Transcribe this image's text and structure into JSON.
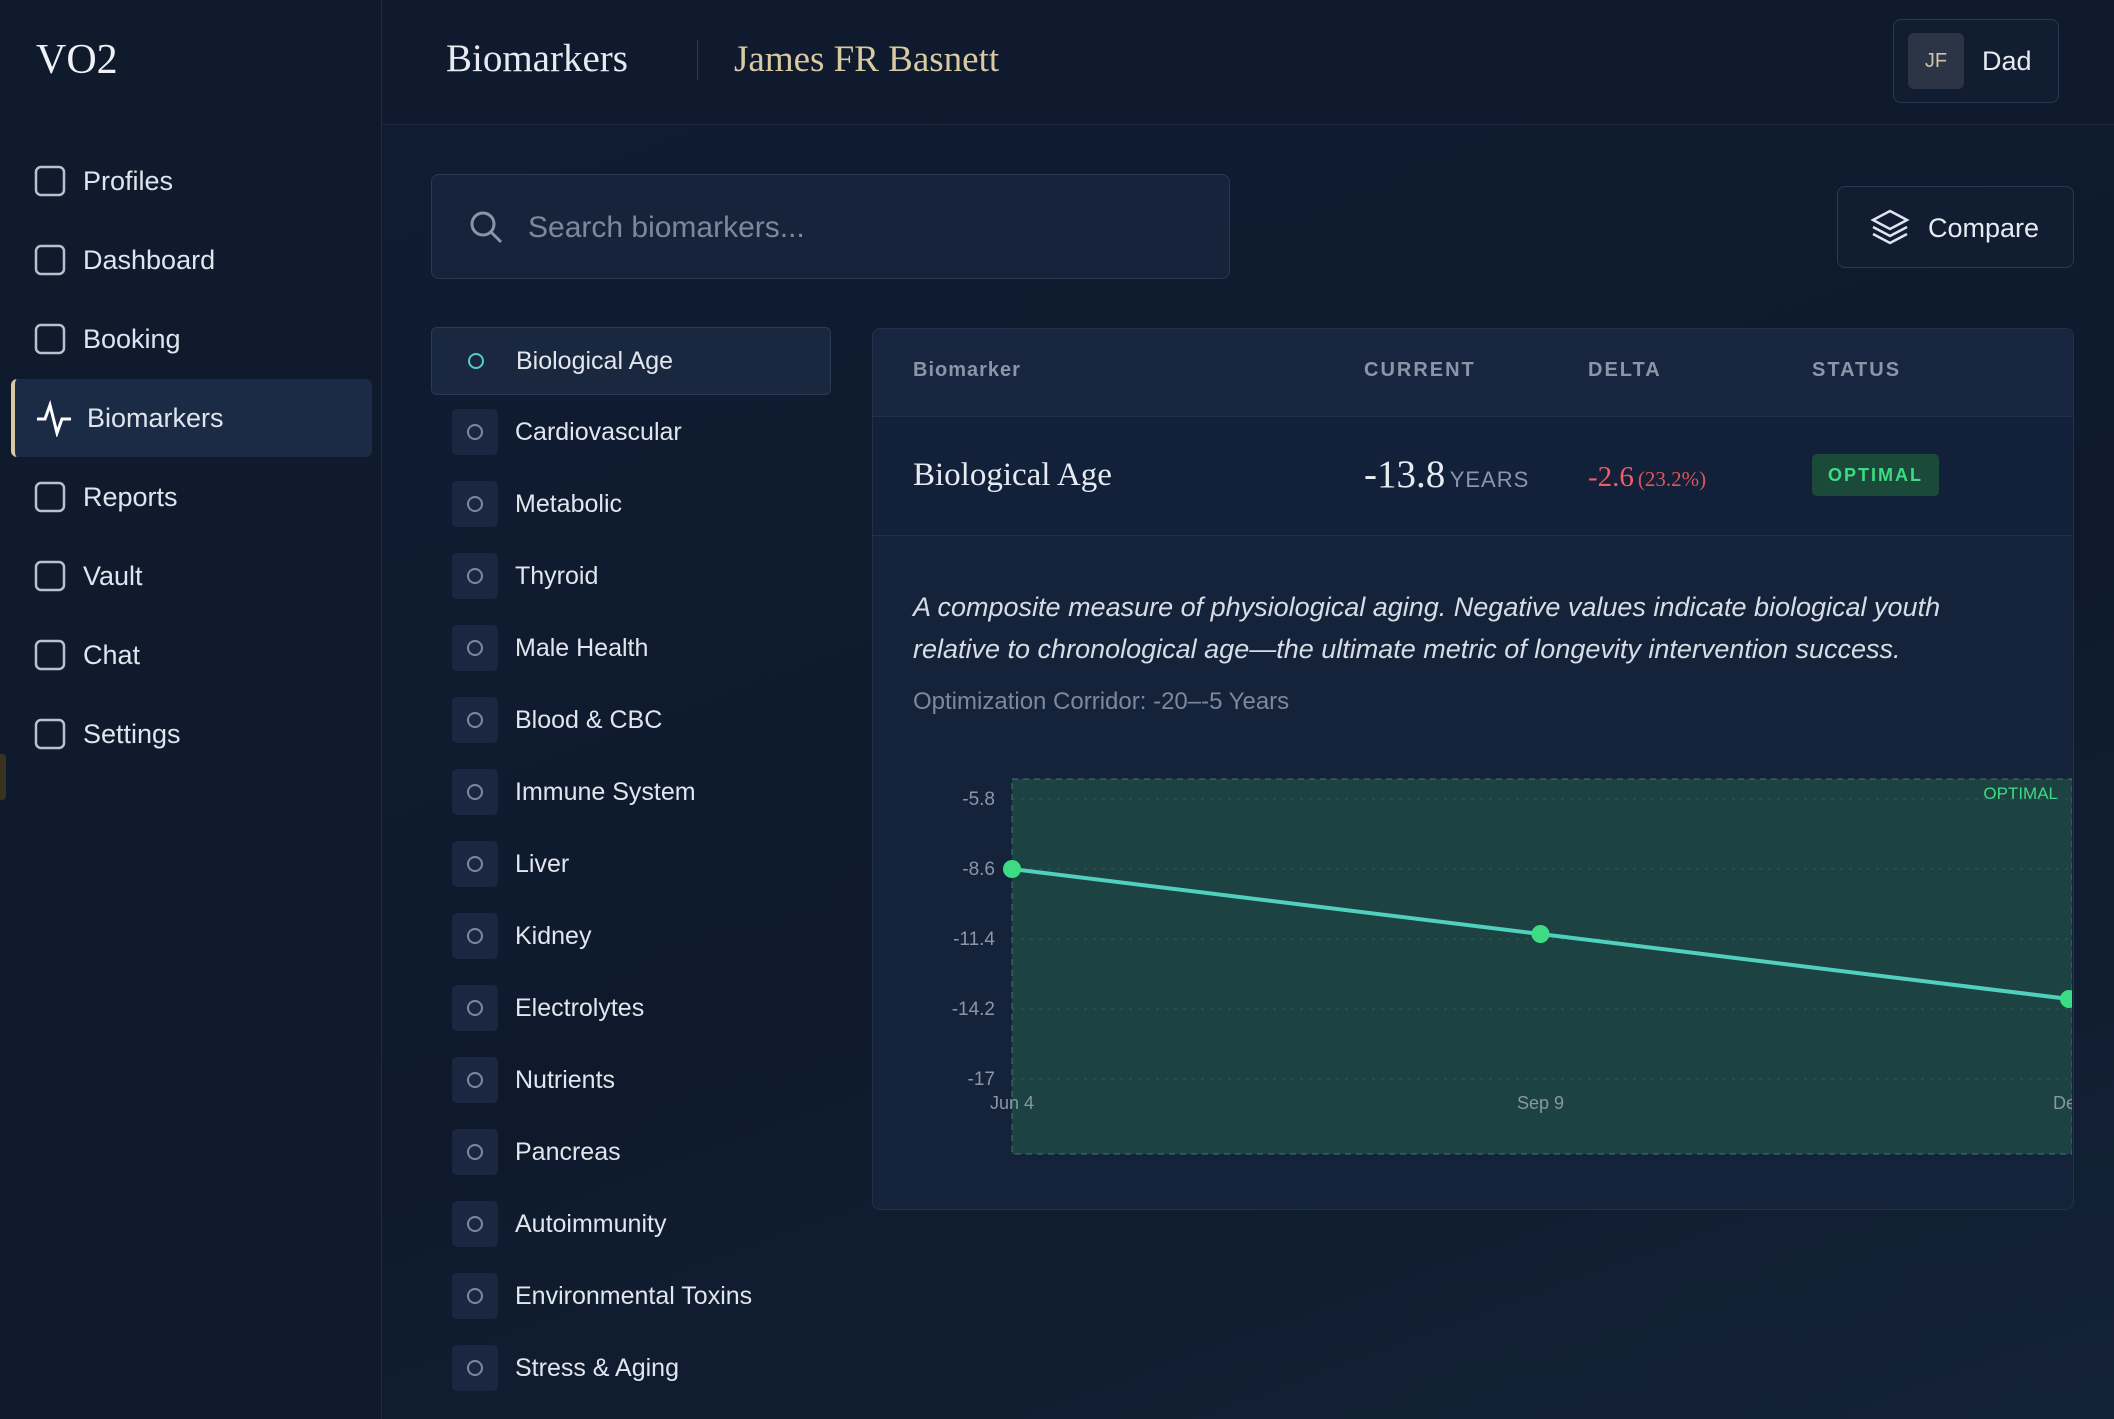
{
  "header": {
    "logo": "VO2",
    "title": "Biomarkers",
    "subject": "James FR Basnett",
    "user_initials": "JF",
    "user_name": "Dad"
  },
  "nav": {
    "items": [
      "Profiles",
      "Dashboard",
      "Booking",
      "Biomarkers",
      "Reports",
      "Vault",
      "Chat",
      "Settings"
    ],
    "active": 3
  },
  "search": {
    "placeholder": "Search biomarkers..."
  },
  "compare": {
    "label": "Compare"
  },
  "categories": {
    "items": [
      "Biological Age",
      "Cardiovascular",
      "Metabolic",
      "Thyroid",
      "Male Health",
      "Blood & CBC",
      "Immune System",
      "Liver",
      "Kidney",
      "Electrolytes",
      "Nutrients",
      "Pancreas",
      "Autoimmunity",
      "Environmental Toxins",
      "Stress & Aging"
    ],
    "active": 0
  },
  "table": {
    "headers": [
      "Biomarker",
      "CURRENT",
      "DELTA",
      "STATUS"
    ],
    "row": {
      "name": "Biological Age",
      "current": -13.8,
      "unit": "YEARS",
      "delta": -2.6,
      "delta_pct": "(23.2%)",
      "status": "OPTIMAL"
    }
  },
  "description": "A composite measure of physiological aging. Negative values indicate biological youth relative to chronological age—the ultimate metric of longevity intervention success.",
  "corridor": "Optimization Corridor: -20–-5 Years",
  "chart_data": {
    "type": "line",
    "categories": [
      "Jun 4",
      "Sep 9",
      "Dec"
    ],
    "series": [
      {
        "name": "Biological Age",
        "color": "#4fd1bd",
        "values": [
          -8.6,
          -11.2,
          -13.8
        ]
      }
    ],
    "point_color": "#3ddc84",
    "ylim": [
      -20,
      -5
    ],
    "yticks": [
      -5.8,
      -8.6,
      -11.4,
      -14.2,
      -17.0
    ],
    "band": {
      "range": [
        -20,
        -5
      ],
      "label": "OPTIMAL",
      "color": "#1f4a45"
    }
  }
}
